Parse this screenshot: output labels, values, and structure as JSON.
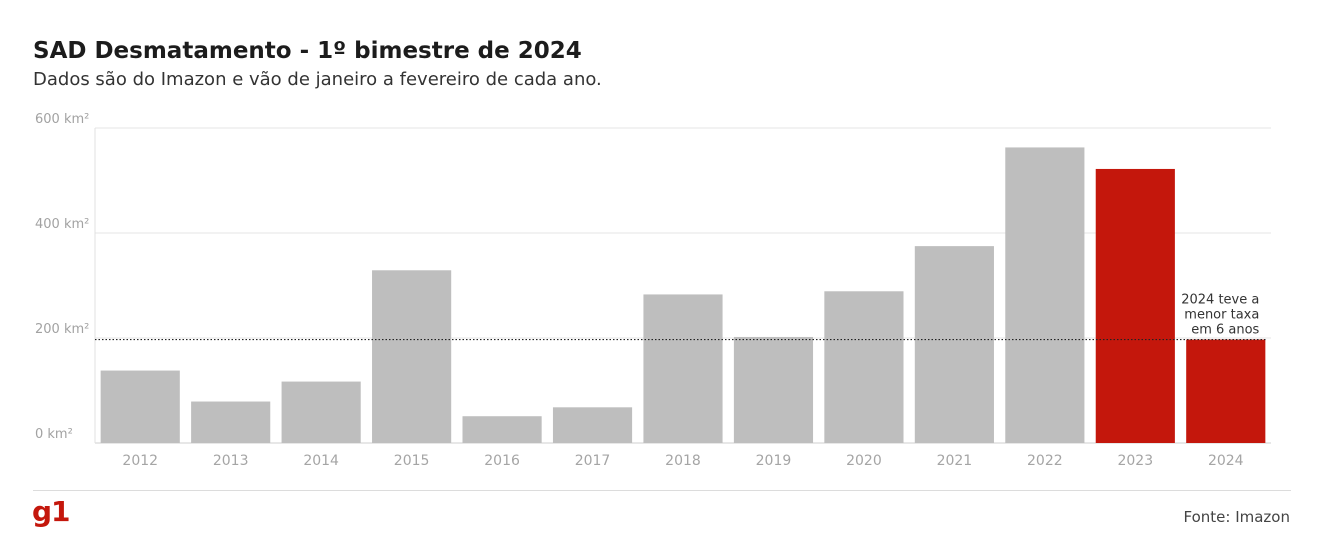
{
  "title": "SAD Desmatamento - 1º bimestre de 2024",
  "subtitle": "Dados são do Imazon e vão de janeiro a fevereiro de cada ano.",
  "source": "Fonte: Imazon",
  "logo": "g1",
  "colors": {
    "default_bar": "#bebebe",
    "highlight_bar": "#c4170c",
    "reference_line": "#222222"
  },
  "chart_data": {
    "type": "bar",
    "unit": "km²",
    "categories": [
      "2012",
      "2013",
      "2014",
      "2015",
      "2016",
      "2017",
      "2018",
      "2019",
      "2020",
      "2021",
      "2022",
      "2023",
      "2024"
    ],
    "values": [
      138,
      79,
      117,
      329,
      51,
      68,
      283,
      202,
      289,
      375,
      563,
      522,
      197
    ],
    "highlight": [
      false,
      false,
      false,
      false,
      false,
      false,
      false,
      false,
      false,
      false,
      false,
      true,
      true
    ],
    "ylim": [
      0,
      600
    ],
    "yticks": [
      0,
      200,
      400,
      600
    ],
    "ytick_labels": [
      "0 km²",
      "200 km²",
      "400 km²",
      "600 km²"
    ],
    "grid": true,
    "reference_line": {
      "value": 197,
      "style": "dotted"
    },
    "annotation": {
      "lines": [
        "2024 teve a",
        "menor taxa",
        "em 6 anos"
      ],
      "category": "2024"
    }
  }
}
